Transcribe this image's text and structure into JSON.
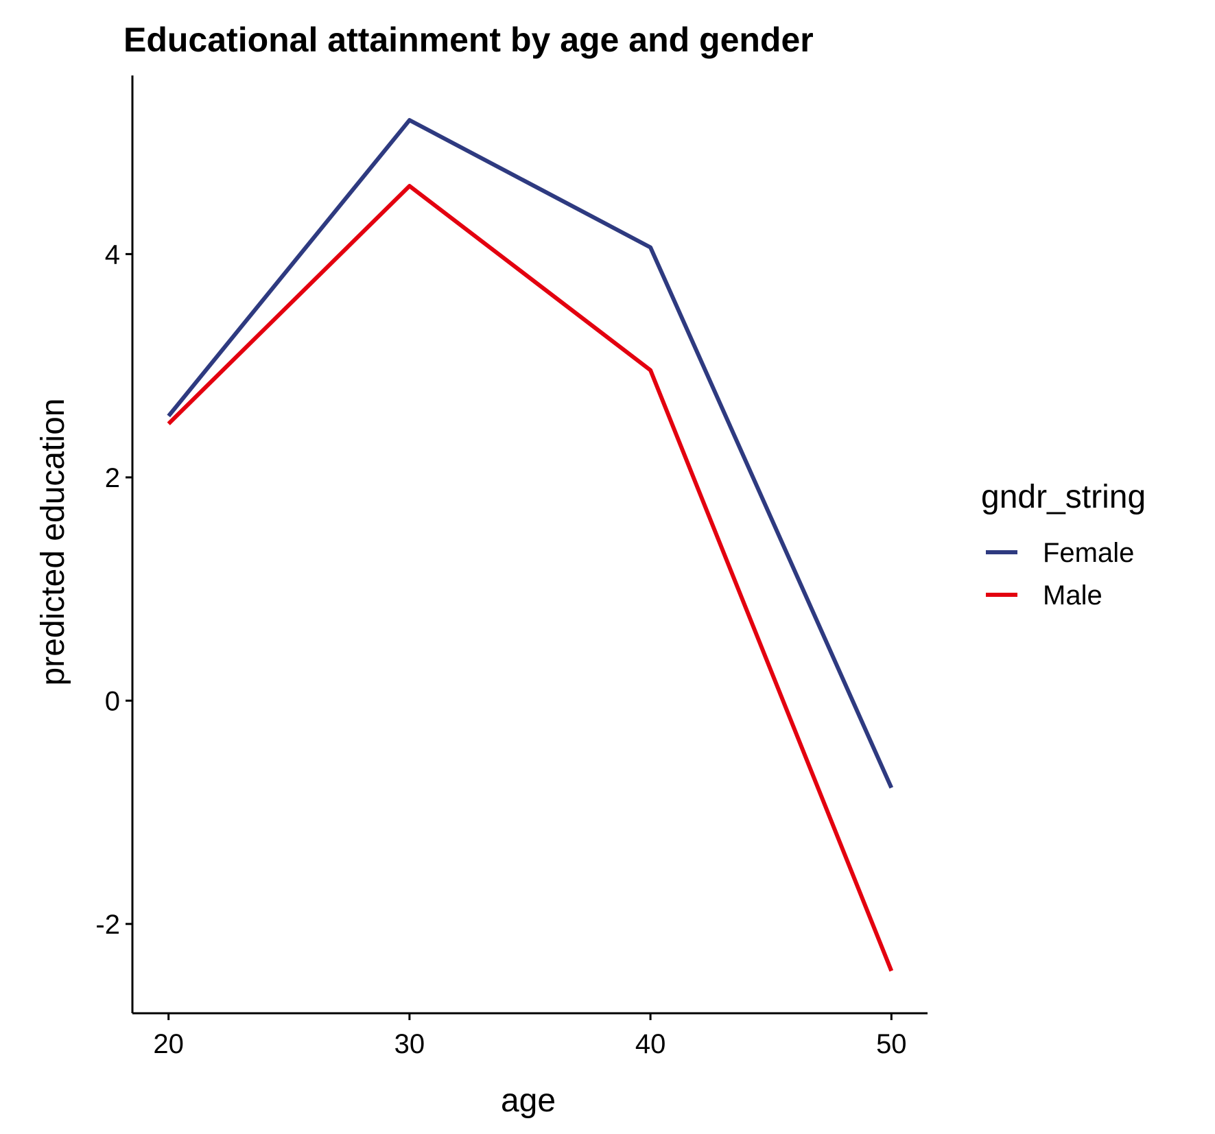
{
  "chart_data": {
    "type": "line",
    "title": "Educational attainment by age and gender",
    "xlabel": "age",
    "ylabel": "predicted education",
    "x": [
      20,
      30,
      40,
      50
    ],
    "xticks": [
      20,
      30,
      40,
      50
    ],
    "yticks": [
      -2,
      0,
      2,
      4
    ],
    "xlim": [
      18.5,
      51.5
    ],
    "ylim": [
      -2.8,
      5.6
    ],
    "grid": false,
    "legend": {
      "title": "gndr_string",
      "placement": "right"
    },
    "series": [
      {
        "name": "Female",
        "color": "#2e3a80",
        "values": [
          2.55,
          5.2,
          4.06,
          -0.78
        ]
      },
      {
        "name": "Male",
        "color": "#e3000f",
        "values": [
          2.48,
          4.61,
          2.96,
          -2.42
        ]
      }
    ]
  }
}
